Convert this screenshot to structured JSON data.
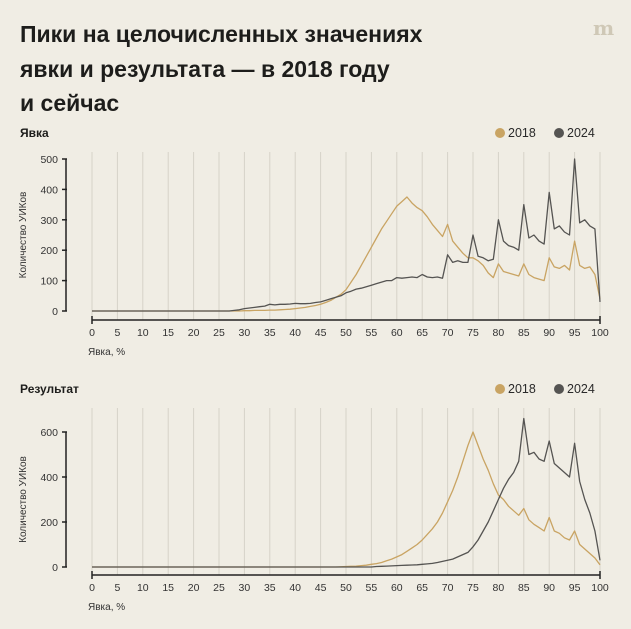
{
  "title_lines": [
    "Пики на целочисленных значениях",
    "явки и результата — в 2018 году",
    "и сейчас"
  ],
  "logo": "m",
  "colors": {
    "2018": "#c9a463",
    "2024": "#555452",
    "background": "#f0ede4",
    "grid": "#d6d2c8"
  },
  "chart_data": [
    {
      "type": "line",
      "title": "Явка",
      "xlabel": "Явка, %",
      "ylabel": "Количество УИКов",
      "xlim": [
        0,
        100
      ],
      "ylim": [
        0,
        500
      ],
      "xticks": [
        0,
        5,
        10,
        15,
        20,
        25,
        30,
        35,
        40,
        45,
        50,
        55,
        60,
        65,
        70,
        75,
        80,
        85,
        90,
        95,
        100
      ],
      "yticks": [
        0,
        100,
        200,
        300,
        400,
        500
      ],
      "grid": "vertical",
      "legend": "top-right",
      "series": [
        {
          "name": "2018",
          "color": "#c9a463",
          "values": [
            0,
            0,
            0,
            0,
            0,
            0,
            0,
            0,
            0,
            0,
            0,
            0,
            0,
            0,
            0,
            0,
            0,
            0,
            0,
            0,
            0,
            0,
            0,
            0,
            0,
            0,
            0,
            0,
            0,
            0,
            1,
            1,
            2,
            2,
            2,
            3,
            3,
            4,
            5,
            6,
            8,
            10,
            12,
            15,
            18,
            22,
            28,
            35,
            45,
            55,
            70,
            95,
            120,
            150,
            180,
            210,
            240,
            270,
            295,
            320,
            345,
            360,
            375,
            355,
            340,
            330,
            310,
            285,
            265,
            245,
            285,
            230,
            210,
            190,
            175,
            175,
            165,
            150,
            125,
            110,
            155,
            130,
            125,
            120,
            115,
            155,
            120,
            110,
            105,
            100,
            175,
            145,
            140,
            150,
            135,
            230,
            150,
            140,
            145,
            120,
            40
          ]
        },
        {
          "name": "2024",
          "color": "#555452",
          "values": [
            0,
            0,
            0,
            0,
            0,
            0,
            0,
            0,
            0,
            0,
            0,
            0,
            0,
            0,
            0,
            0,
            0,
            0,
            0,
            0,
            0,
            0,
            0,
            0,
            0,
            0,
            0,
            0,
            2,
            4,
            8,
            10,
            12,
            14,
            16,
            22,
            20,
            22,
            22,
            23,
            25,
            24,
            24,
            25,
            28,
            30,
            35,
            40,
            45,
            50,
            60,
            65,
            72,
            75,
            80,
            85,
            90,
            95,
            100,
            100,
            110,
            108,
            110,
            112,
            110,
            120,
            112,
            110,
            112,
            108,
            185,
            160,
            165,
            160,
            160,
            250,
            180,
            175,
            165,
            170,
            300,
            230,
            215,
            210,
            200,
            350,
            240,
            250,
            230,
            220,
            390,
            270,
            280,
            260,
            250,
            500,
            290,
            300,
            280,
            270,
            30
          ]
        }
      ]
    },
    {
      "type": "line",
      "title": "Результат",
      "xlabel": "Явка, %",
      "ylabel": "Количество УИКов",
      "xlim": [
        0,
        100
      ],
      "ylim": [
        0,
        670
      ],
      "xticks": [
        0,
        5,
        10,
        15,
        20,
        25,
        30,
        35,
        40,
        45,
        50,
        55,
        60,
        65,
        70,
        75,
        80,
        85,
        90,
        95,
        100
      ],
      "yticks": [
        0,
        200,
        400,
        600
      ],
      "grid": "vertical",
      "legend": "top-right",
      "series": [
        {
          "name": "2018",
          "color": "#c9a463",
          "values": [
            0,
            0,
            0,
            0,
            0,
            0,
            0,
            0,
            0,
            0,
            0,
            0,
            0,
            0,
            0,
            0,
            0,
            0,
            0,
            0,
            0,
            0,
            0,
            0,
            0,
            0,
            0,
            0,
            0,
            0,
            0,
            0,
            0,
            0,
            0,
            0,
            0,
            0,
            0,
            0,
            0,
            0,
            0,
            0,
            0,
            0,
            0,
            0,
            0,
            1,
            2,
            3,
            4,
            6,
            8,
            12,
            15,
            20,
            28,
            35,
            45,
            55,
            70,
            85,
            100,
            120,
            145,
            170,
            200,
            240,
            290,
            340,
            400,
            470,
            540,
            600,
            540,
            480,
            430,
            370,
            320,
            300,
            270,
            250,
            230,
            260,
            210,
            190,
            175,
            160,
            220,
            160,
            150,
            130,
            120,
            160,
            100,
            80,
            60,
            40,
            10
          ]
        },
        {
          "name": "2024",
          "color": "#555452",
          "values": [
            0,
            0,
            0,
            0,
            0,
            0,
            0,
            0,
            0,
            0,
            0,
            0,
            0,
            0,
            0,
            0,
            0,
            0,
            0,
            0,
            0,
            0,
            0,
            0,
            0,
            0,
            0,
            0,
            0,
            0,
            0,
            0,
            0,
            0,
            0,
            0,
            0,
            0,
            0,
            0,
            0,
            0,
            0,
            0,
            0,
            0,
            0,
            0,
            0,
            0,
            0,
            0,
            0,
            0,
            0,
            0,
            2,
            3,
            4,
            5,
            6,
            7,
            8,
            9,
            10,
            12,
            14,
            16,
            20,
            25,
            30,
            35,
            45,
            55,
            65,
            90,
            120,
            160,
            200,
            250,
            300,
            350,
            390,
            420,
            470,
            660,
            500,
            510,
            480,
            470,
            560,
            460,
            440,
            420,
            400,
            550,
            380,
            300,
            240,
            160,
            30
          ]
        }
      ]
    }
  ]
}
